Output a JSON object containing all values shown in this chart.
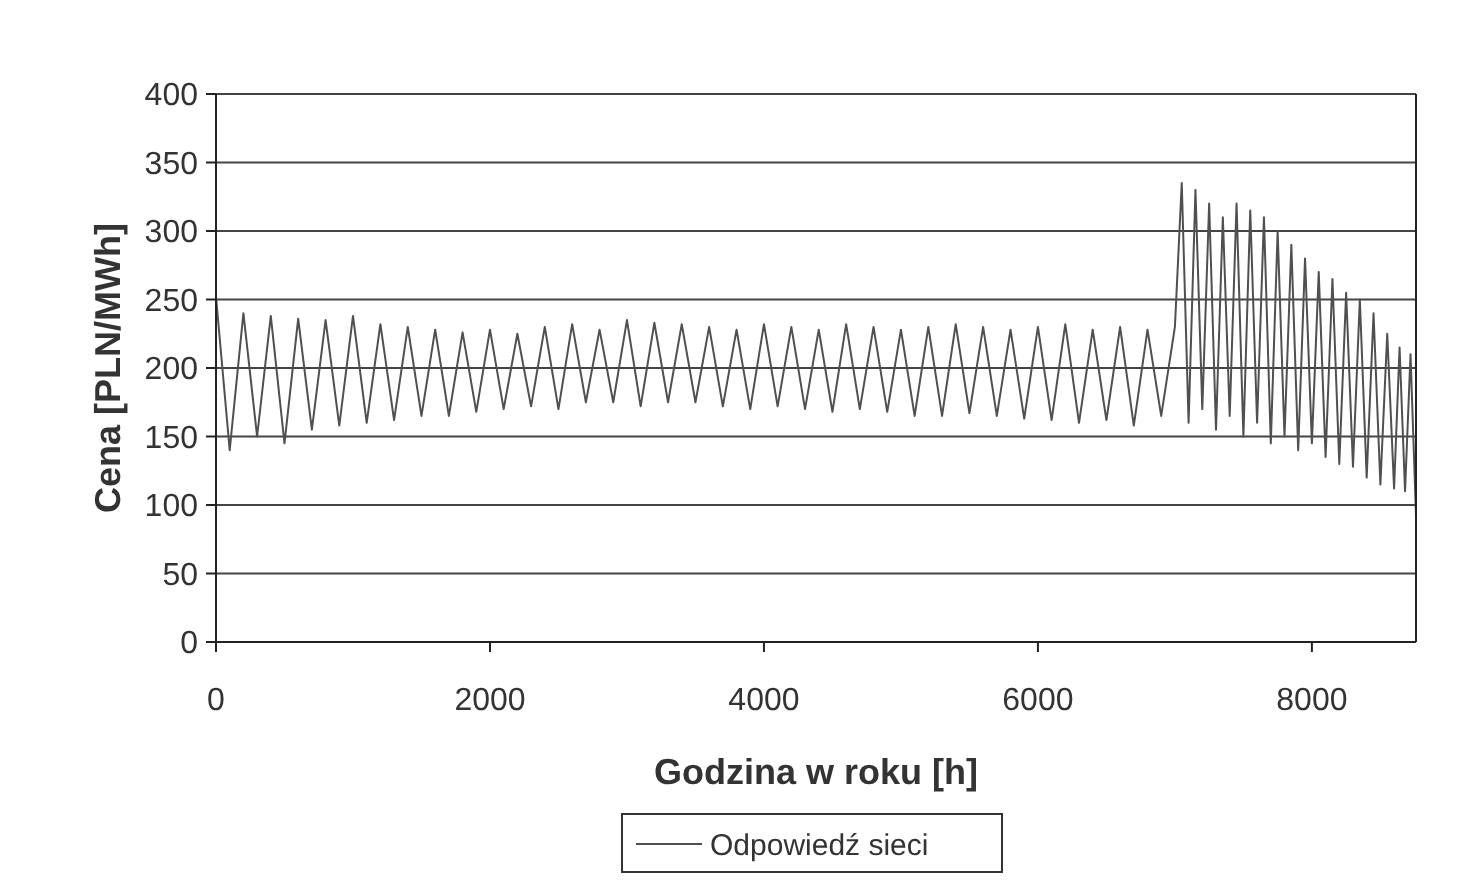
{
  "chart_data": {
    "type": "line",
    "xlabel": "Godzina w roku [h]",
    "ylabel": "Cena [PLN/MWh]",
    "xlim": [
      0,
      8760
    ],
    "xticks": [
      0,
      2000,
      4000,
      6000,
      8000
    ],
    "ylim": [
      0,
      400
    ],
    "yticks": [
      0,
      50,
      100,
      150,
      200,
      250,
      300,
      350,
      400
    ],
    "grid": "y",
    "legend": "bottom",
    "marker": "none",
    "line_style": "solid",
    "series": [
      {
        "name": "Odpowiedź sieci",
        "color": "#505050",
        "x": [
          0,
          100,
          200,
          300,
          400,
          500,
          600,
          700,
          800,
          900,
          1000,
          1100,
          1200,
          1300,
          1400,
          1500,
          1600,
          1700,
          1800,
          1900,
          2000,
          2100,
          2200,
          2300,
          2400,
          2500,
          2600,
          2700,
          2800,
          2900,
          3000,
          3100,
          3200,
          3300,
          3400,
          3500,
          3600,
          3700,
          3800,
          3900,
          4000,
          4100,
          4200,
          4300,
          4400,
          4500,
          4600,
          4700,
          4800,
          4900,
          5000,
          5100,
          5200,
          5300,
          5400,
          5500,
          5600,
          5700,
          5800,
          5900,
          6000,
          6100,
          6200,
          6300,
          6400,
          6500,
          6600,
          6700,
          6800,
          6900,
          7000,
          7050,
          7100,
          7150,
          7200,
          7250,
          7300,
          7350,
          7400,
          7450,
          7500,
          7550,
          7600,
          7650,
          7700,
          7750,
          7800,
          7850,
          7900,
          7950,
          8000,
          8050,
          8100,
          8150,
          8200,
          8250,
          8300,
          8350,
          8400,
          8450,
          8500,
          8550,
          8600,
          8640,
          8680,
          8720,
          8760
        ],
        "values": [
          252,
          140,
          240,
          150,
          238,
          145,
          236,
          155,
          235,
          158,
          238,
          160,
          232,
          162,
          230,
          165,
          228,
          165,
          226,
          168,
          228,
          170,
          225,
          172,
          230,
          170,
          232,
          175,
          228,
          175,
          235,
          172,
          233,
          175,
          232,
          175,
          230,
          172,
          228,
          170,
          232,
          172,
          230,
          170,
          228,
          168,
          232,
          170,
          230,
          168,
          228,
          165,
          230,
          165,
          232,
          167,
          230,
          165,
          228,
          163,
          230,
          162,
          232,
          160,
          228,
          162,
          230,
          158,
          228,
          165,
          230,
          335,
          160,
          330,
          170,
          320,
          155,
          310,
          165,
          320,
          150,
          315,
          160,
          310,
          145,
          300,
          150,
          290,
          140,
          280,
          145,
          270,
          135,
          265,
          130,
          255,
          128,
          250,
          120,
          240,
          115,
          225,
          112,
          215,
          110,
          210,
          92
        ]
      }
    ]
  }
}
